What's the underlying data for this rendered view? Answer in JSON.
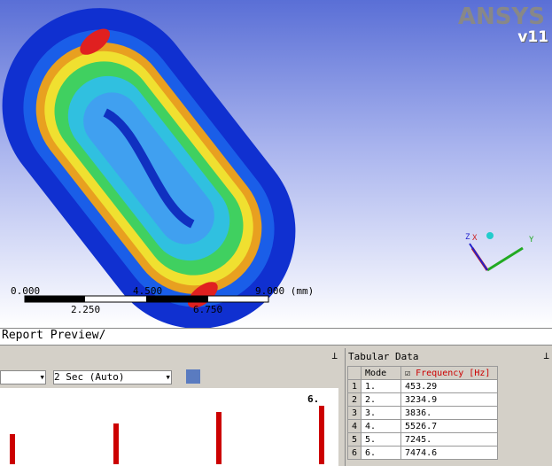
{
  "viewport": {
    "logo": "ANSYS",
    "version": "v11",
    "scale_top": [
      "0.000",
      "4.500",
      "9.000 (mm)"
    ],
    "scale_bottom": [
      "2.250",
      "6.750"
    ],
    "triad": [
      "Z",
      "X",
      "Y"
    ]
  },
  "tabs": {
    "active": "Report Preview/"
  },
  "graph": {
    "interval": "2 Sec (Auto)",
    "marker": "6."
  },
  "tabular": {
    "title": "Tabular Data",
    "columns": [
      "Mode",
      "Frequency [Hz]"
    ],
    "rows": [
      [
        "1",
        "1.",
        "453.29"
      ],
      [
        "2",
        "2.",
        "3234.9"
      ],
      [
        "3",
        "3.",
        "3836."
      ],
      [
        "4",
        "4.",
        "5526.7"
      ],
      [
        "5",
        "5.",
        "7245."
      ],
      [
        "6",
        "6.",
        "7474.6"
      ]
    ]
  }
}
